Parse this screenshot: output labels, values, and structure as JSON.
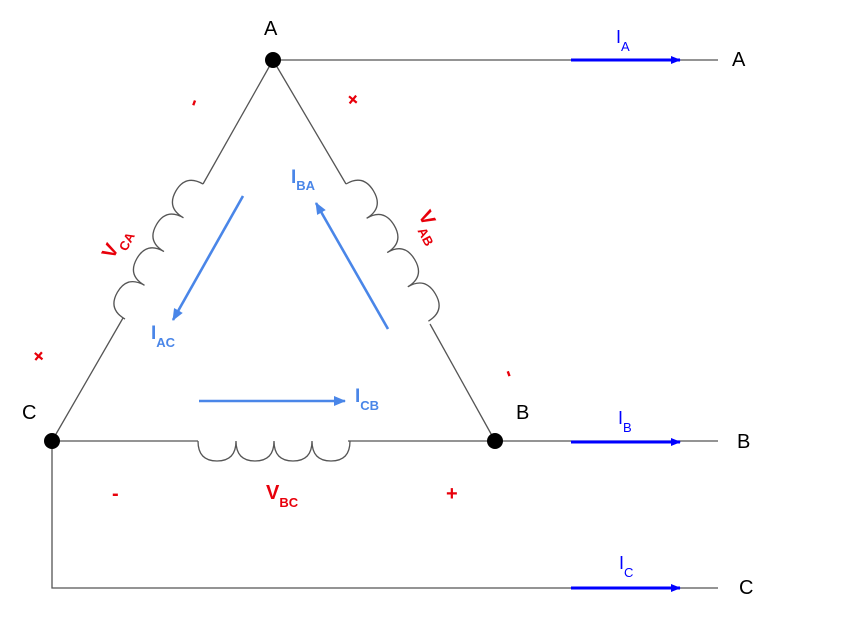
{
  "colors": {
    "wire": "#555555",
    "node": "#000000",
    "line_current": "#0000ff",
    "phase_current": "#4a86e8",
    "voltage": "#e8000b",
    "text": "#000000"
  },
  "nodes": {
    "a": "A",
    "b": "B",
    "c": "C"
  },
  "terminals": {
    "a": "A",
    "b": "B",
    "c": "C"
  },
  "line_currents": {
    "ia": {
      "symbol": "I",
      "subscript": "A"
    },
    "ib": {
      "symbol": "I",
      "subscript": "B"
    },
    "ic": {
      "symbol": "I",
      "subscript": "C"
    }
  },
  "phase_currents": {
    "iba": {
      "symbol": "I",
      "subscript": "BA"
    },
    "iac": {
      "symbol": "I",
      "subscript": "AC"
    },
    "icb": {
      "symbol": "I",
      "subscript": "CB"
    }
  },
  "voltages": {
    "vab": {
      "symbol": "V",
      "subscript": "AB"
    },
    "vca": {
      "symbol": "V",
      "subscript": "CA"
    },
    "vbc": {
      "symbol": "V",
      "subscript": "BC"
    }
  },
  "polarity": {
    "ab_plus": "+",
    "ab_minus": "-",
    "ca_plus": "+",
    "ca_minus": "-",
    "bc_plus": "+",
    "bc_minus": "-"
  }
}
